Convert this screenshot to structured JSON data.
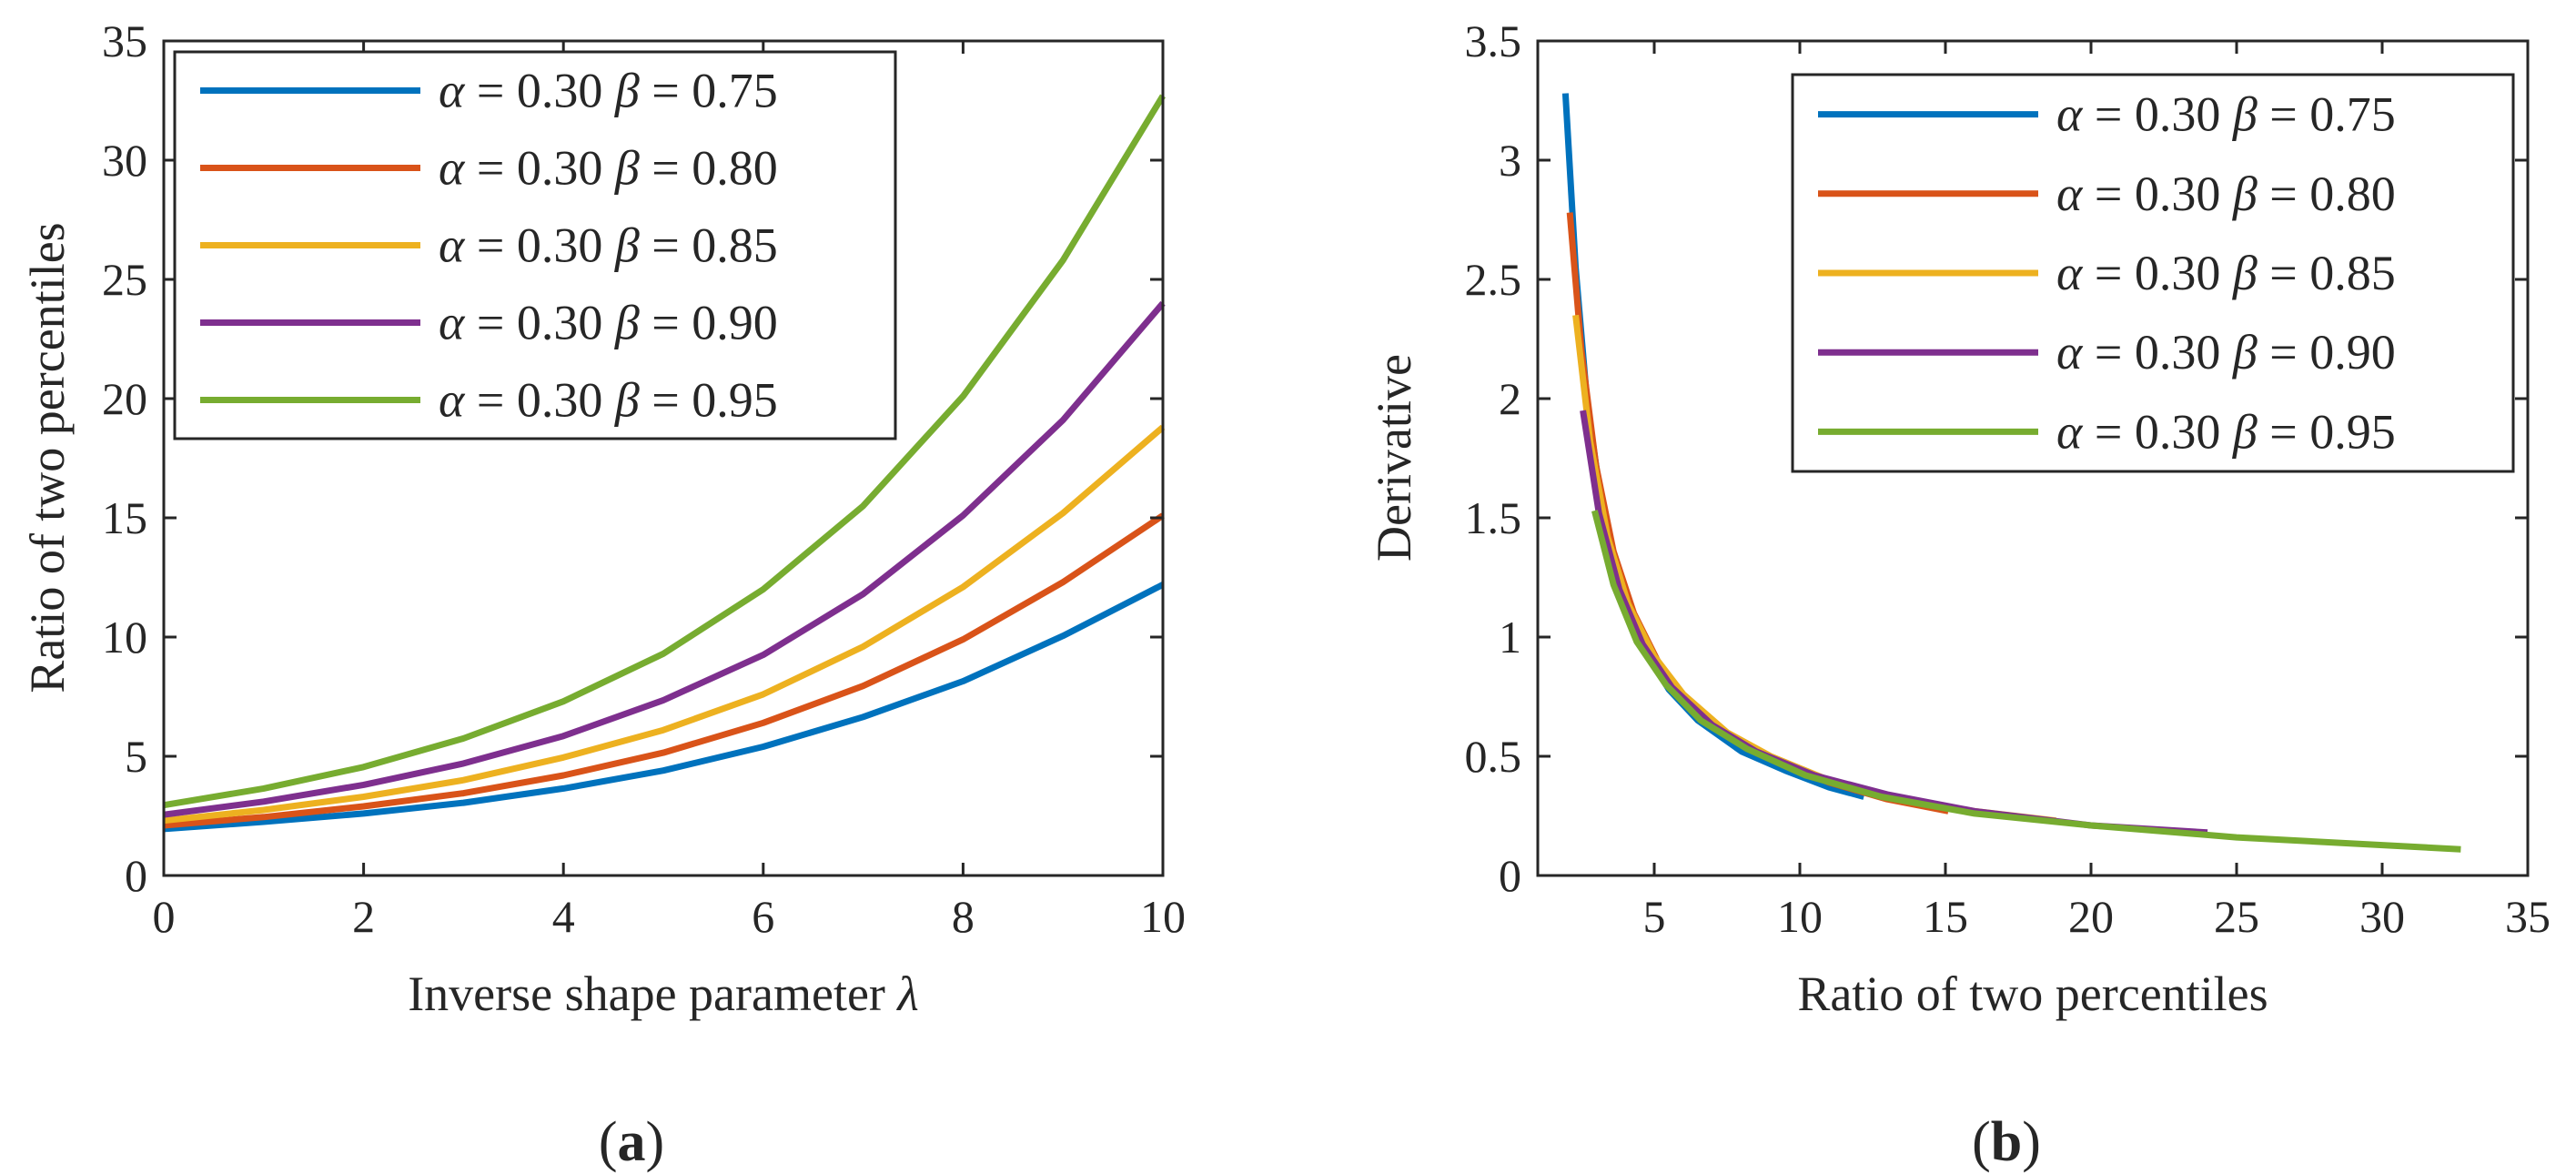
{
  "chart_data": [
    {
      "type": "line",
      "panel_caption": "a",
      "xlabel": "Inverse shape parameter",
      "xlabel_symbol": "λ",
      "ylabel": "Ratio of two percentiles",
      "xlim": [
        0,
        10
      ],
      "ylim": [
        0,
        35
      ],
      "xticks": [
        "0",
        "2",
        "4",
        "6",
        "8",
        "10"
      ],
      "yticks": [
        "0",
        "5",
        "10",
        "15",
        "20",
        "25",
        "30",
        "35"
      ],
      "grid": false,
      "legend_position": "top-left",
      "series": [
        {
          "name": "α = 0.30 β = 0.75",
          "color": "#0072BD",
          "x": [
            0,
            1,
            2,
            3,
            4,
            5,
            6,
            7,
            8,
            9,
            10
          ],
          "y": [
            1.95,
            2.25,
            2.6,
            3.05,
            3.65,
            4.4,
            5.4,
            6.65,
            8.15,
            10.05,
            12.2
          ]
        },
        {
          "name": "α = 0.30 β = 0.80",
          "color": "#D95319",
          "x": [
            0,
            1,
            2,
            3,
            4,
            5,
            6,
            7,
            8,
            9,
            10
          ],
          "y": [
            2.1,
            2.45,
            2.9,
            3.45,
            4.2,
            5.15,
            6.4,
            7.95,
            9.9,
            12.3,
            15.1
          ]
        },
        {
          "name": "α = 0.30 β = 0.85",
          "color": "#EDB120",
          "x": [
            0,
            1,
            2,
            3,
            4,
            5,
            6,
            7,
            8,
            9,
            10
          ],
          "y": [
            2.3,
            2.75,
            3.3,
            4.0,
            4.95,
            6.1,
            7.6,
            9.6,
            12.1,
            15.2,
            18.8
          ]
        },
        {
          "name": "α = 0.30 β = 0.90",
          "color": "#7E2F8E",
          "x": [
            0,
            1,
            2,
            3,
            4,
            5,
            6,
            7,
            8,
            9,
            10
          ],
          "y": [
            2.55,
            3.1,
            3.8,
            4.7,
            5.85,
            7.35,
            9.25,
            11.8,
            15.1,
            19.1,
            24.0
          ]
        },
        {
          "name": "α = 0.30 β = 0.95",
          "color": "#77AC30",
          "x": [
            0,
            1,
            2,
            3,
            4,
            5,
            6,
            7,
            8,
            9,
            10
          ],
          "y": [
            2.95,
            3.65,
            4.55,
            5.75,
            7.3,
            9.3,
            12.0,
            15.5,
            20.1,
            25.8,
            32.7
          ]
        }
      ]
    },
    {
      "type": "line",
      "panel_caption": "b",
      "xlabel": "Ratio of two percentiles",
      "ylabel": "Derivative",
      "xlim": [
        1,
        35
      ],
      "ylim": [
        0,
        3.5
      ],
      "xticks": [
        "5",
        "10",
        "15",
        "20",
        "25",
        "30",
        "35"
      ],
      "yticks": [
        "0",
        "0.5",
        "1",
        "1.5",
        "2",
        "2.5",
        "3",
        "3.5"
      ],
      "grid": false,
      "legend_position": "top-right",
      "series": [
        {
          "name": "α = 0.30 β = 0.75",
          "color": "#0072BD",
          "x": [
            1.95,
            2.3,
            2.7,
            3.2,
            3.8,
            4.5,
            5.5,
            6.5,
            8,
            9.5,
            11,
            12.2
          ],
          "y": [
            3.28,
            2.55,
            1.98,
            1.55,
            1.22,
            0.98,
            0.78,
            0.65,
            0.52,
            0.44,
            0.37,
            0.33
          ]
        },
        {
          "name": "α = 0.30 β = 0.80",
          "color": "#D95319",
          "x": [
            2.1,
            2.5,
            3.0,
            3.6,
            4.3,
            5.2,
            6.3,
            7.5,
            9,
            11,
            13,
            15.1
          ],
          "y": [
            2.78,
            2.2,
            1.72,
            1.36,
            1.1,
            0.88,
            0.71,
            0.59,
            0.49,
            0.39,
            0.32,
            0.27
          ]
        },
        {
          "name": "α = 0.30 β = 0.85",
          "color": "#EDB120",
          "x": [
            2.3,
            2.8,
            3.4,
            4.1,
            5,
            6,
            7.5,
            9,
            11,
            13.5,
            16,
            18.8
          ],
          "y": [
            2.35,
            1.82,
            1.42,
            1.14,
            0.92,
            0.76,
            0.6,
            0.5,
            0.4,
            0.32,
            0.27,
            0.23
          ]
        },
        {
          "name": "α = 0.30 β = 0.90",
          "color": "#7E2F8E",
          "x": [
            2.55,
            3.1,
            3.8,
            4.6,
            5.6,
            7,
            8.5,
            10.5,
            13,
            16,
            20,
            24
          ],
          "y": [
            1.95,
            1.52,
            1.2,
            0.97,
            0.79,
            0.63,
            0.52,
            0.42,
            0.34,
            0.27,
            0.21,
            0.18
          ]
        },
        {
          "name": "α = 0.30 β = 0.95",
          "color": "#77AC30",
          "x": [
            2.95,
            3.6,
            4.4,
            5.4,
            6.6,
            8.2,
            10.2,
            12.8,
            16,
            20,
            25,
            32.7
          ],
          "y": [
            1.53,
            1.22,
            0.98,
            0.8,
            0.65,
            0.53,
            0.42,
            0.33,
            0.26,
            0.21,
            0.16,
            0.11
          ]
        }
      ]
    }
  ]
}
